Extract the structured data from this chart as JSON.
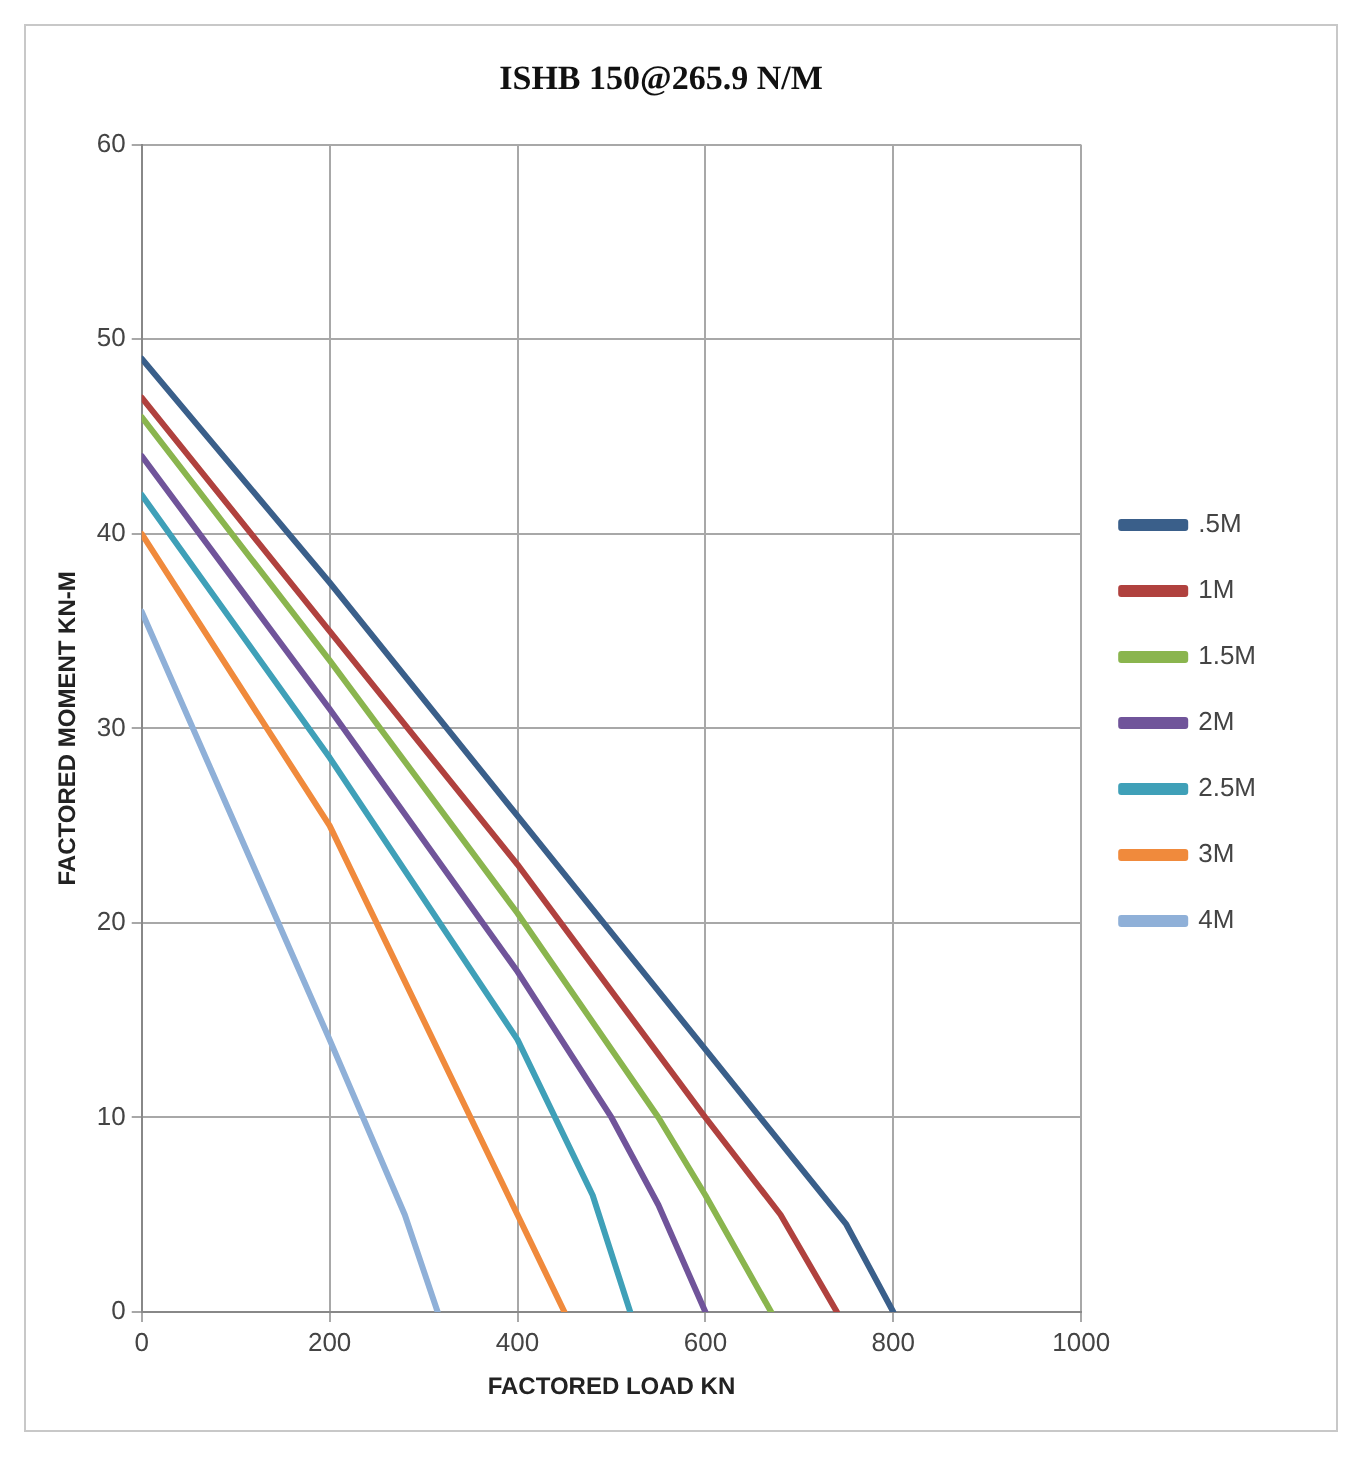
{
  "chart_data": {
    "type": "line",
    "title": "ISHB 150@265.9 N/M",
    "xlabel": "FACTORED LOAD KN",
    "ylabel": "FACTORED MOMENT KN-M",
    "xlim": [
      0,
      1000
    ],
    "xticks": [
      0,
      200,
      400,
      600,
      800,
      1000
    ],
    "ylim": [
      0,
      60
    ],
    "yticks": [
      0,
      10,
      20,
      30,
      40,
      50,
      60
    ],
    "grid": true,
    "legend": "right",
    "marker": "none",
    "line_style": "solid",
    "series": [
      {
        "name": ".5M",
        "color": "#3a5f8a",
        "x": [
          0,
          200,
          400,
          600,
          700,
          750,
          800
        ],
        "values": [
          49,
          37.5,
          25.5,
          13.5,
          7.5,
          4.5,
          0
        ]
      },
      {
        "name": "1M",
        "color": "#b0413e",
        "x": [
          0,
          200,
          400,
          600,
          680,
          740
        ],
        "values": [
          47,
          35,
          23,
          10,
          5,
          0
        ]
      },
      {
        "name": "1.5M",
        "color": "#8ab54e",
        "x": [
          0,
          200,
          400,
          550,
          600,
          670
        ],
        "values": [
          46,
          33.5,
          20.5,
          10,
          6,
          0
        ]
      },
      {
        "name": "2M",
        "color": "#70549a",
        "x": [
          0,
          200,
          400,
          500,
          550,
          600
        ],
        "values": [
          44,
          31,
          17.5,
          10,
          5.5,
          0
        ]
      },
      {
        "name": "2.5M",
        "color": "#3fa0b8",
        "x": [
          0,
          200,
          400,
          480,
          520
        ],
        "values": [
          42,
          28.5,
          14,
          6,
          0
        ]
      },
      {
        "name": "3M",
        "color": "#f08a3c",
        "x": [
          0,
          200,
          350,
          400,
          450
        ],
        "values": [
          40,
          25,
          10,
          5,
          0
        ]
      },
      {
        "name": "4M",
        "color": "#8fb0d8",
        "x": [
          0,
          200,
          280,
          315
        ],
        "values": [
          36,
          14,
          5,
          0
        ]
      }
    ]
  }
}
